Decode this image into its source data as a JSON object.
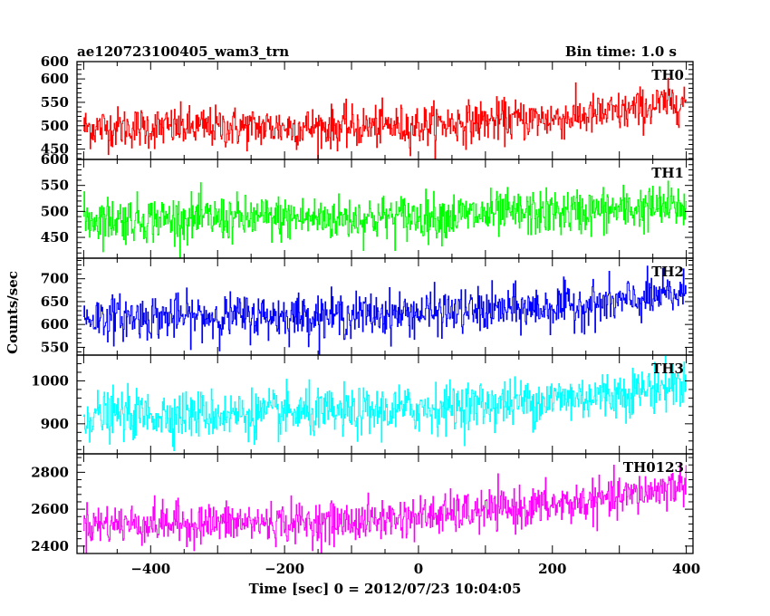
{
  "header": {
    "left_title": "ae120723100405_wam3_trn",
    "right_title": "Bin time: 1.0 s"
  },
  "chart_data": {
    "type": "line",
    "xlabel": "Time [sec] 0 = 2012/07/23 10:04:05",
    "ylabel": "Counts/sec",
    "xlim": [
      -510,
      410
    ],
    "x_ticks": [
      -400,
      -200,
      0,
      200,
      400
    ],
    "x_tick_labels": [
      "−400",
      "−200",
      "0",
      "200",
      "400"
    ],
    "x_start": -500,
    "x_end": 400,
    "x_step": 1,
    "panels": [
      {
        "name": "TH0",
        "color": "#ff0000",
        "ylim": [
          428,
          637
        ],
        "yticks": [
          450,
          500,
          550,
          600
        ],
        "top_label": "600",
        "trend_points": [
          [
            -500,
            496
          ],
          [
            -100,
            497
          ],
          [
            0,
            500
          ],
          [
            100,
            510
          ],
          [
            200,
            515
          ],
          [
            300,
            528
          ],
          [
            400,
            555
          ]
        ],
        "noise_sd": 22
      },
      {
        "name": "TH1",
        "color": "#00ff00",
        "ylim": [
          410,
          600
        ],
        "yticks": [
          450,
          500,
          550
        ],
        "top_label": "600",
        "trend_points": [
          [
            -500,
            485
          ],
          [
            -100,
            487
          ],
          [
            0,
            490
          ],
          [
            100,
            493
          ],
          [
            200,
            497
          ],
          [
            300,
            503
          ],
          [
            400,
            510
          ]
        ],
        "noise_sd": 22
      },
      {
        "name": "TH2",
        "color": "#0000ff",
        "ylim": [
          533,
          745
        ],
        "yticks": [
          550,
          600,
          650,
          700
        ],
        "top_label": null,
        "trend_points": [
          [
            -500,
            615
          ],
          [
            -100,
            620
          ],
          [
            0,
            625
          ],
          [
            100,
            630
          ],
          [
            200,
            637
          ],
          [
            300,
            648
          ],
          [
            400,
            668
          ]
        ],
        "noise_sd": 24
      },
      {
        "name": "TH3",
        "color": "#00ffff",
        "ylim": [
          830,
          1060
        ],
        "yticks": [
          900,
          1000
        ],
        "top_label": null,
        "trend_points": [
          [
            -500,
            920
          ],
          [
            -100,
            925
          ],
          [
            0,
            935
          ],
          [
            100,
            945
          ],
          [
            200,
            957
          ],
          [
            300,
            970
          ],
          [
            400,
            995
          ]
        ],
        "noise_sd": 28
      },
      {
        "name": "TH0123",
        "color": "#ff00ff",
        "ylim": [
          2360,
          2900
        ],
        "yticks": [
          2400,
          2600,
          2800
        ],
        "top_label": null,
        "trend_points": [
          [
            -500,
            2520
          ],
          [
            -100,
            2530
          ],
          [
            0,
            2560
          ],
          [
            100,
            2590
          ],
          [
            200,
            2620
          ],
          [
            300,
            2660
          ],
          [
            400,
            2740
          ]
        ],
        "noise_sd": 55
      }
    ]
  }
}
